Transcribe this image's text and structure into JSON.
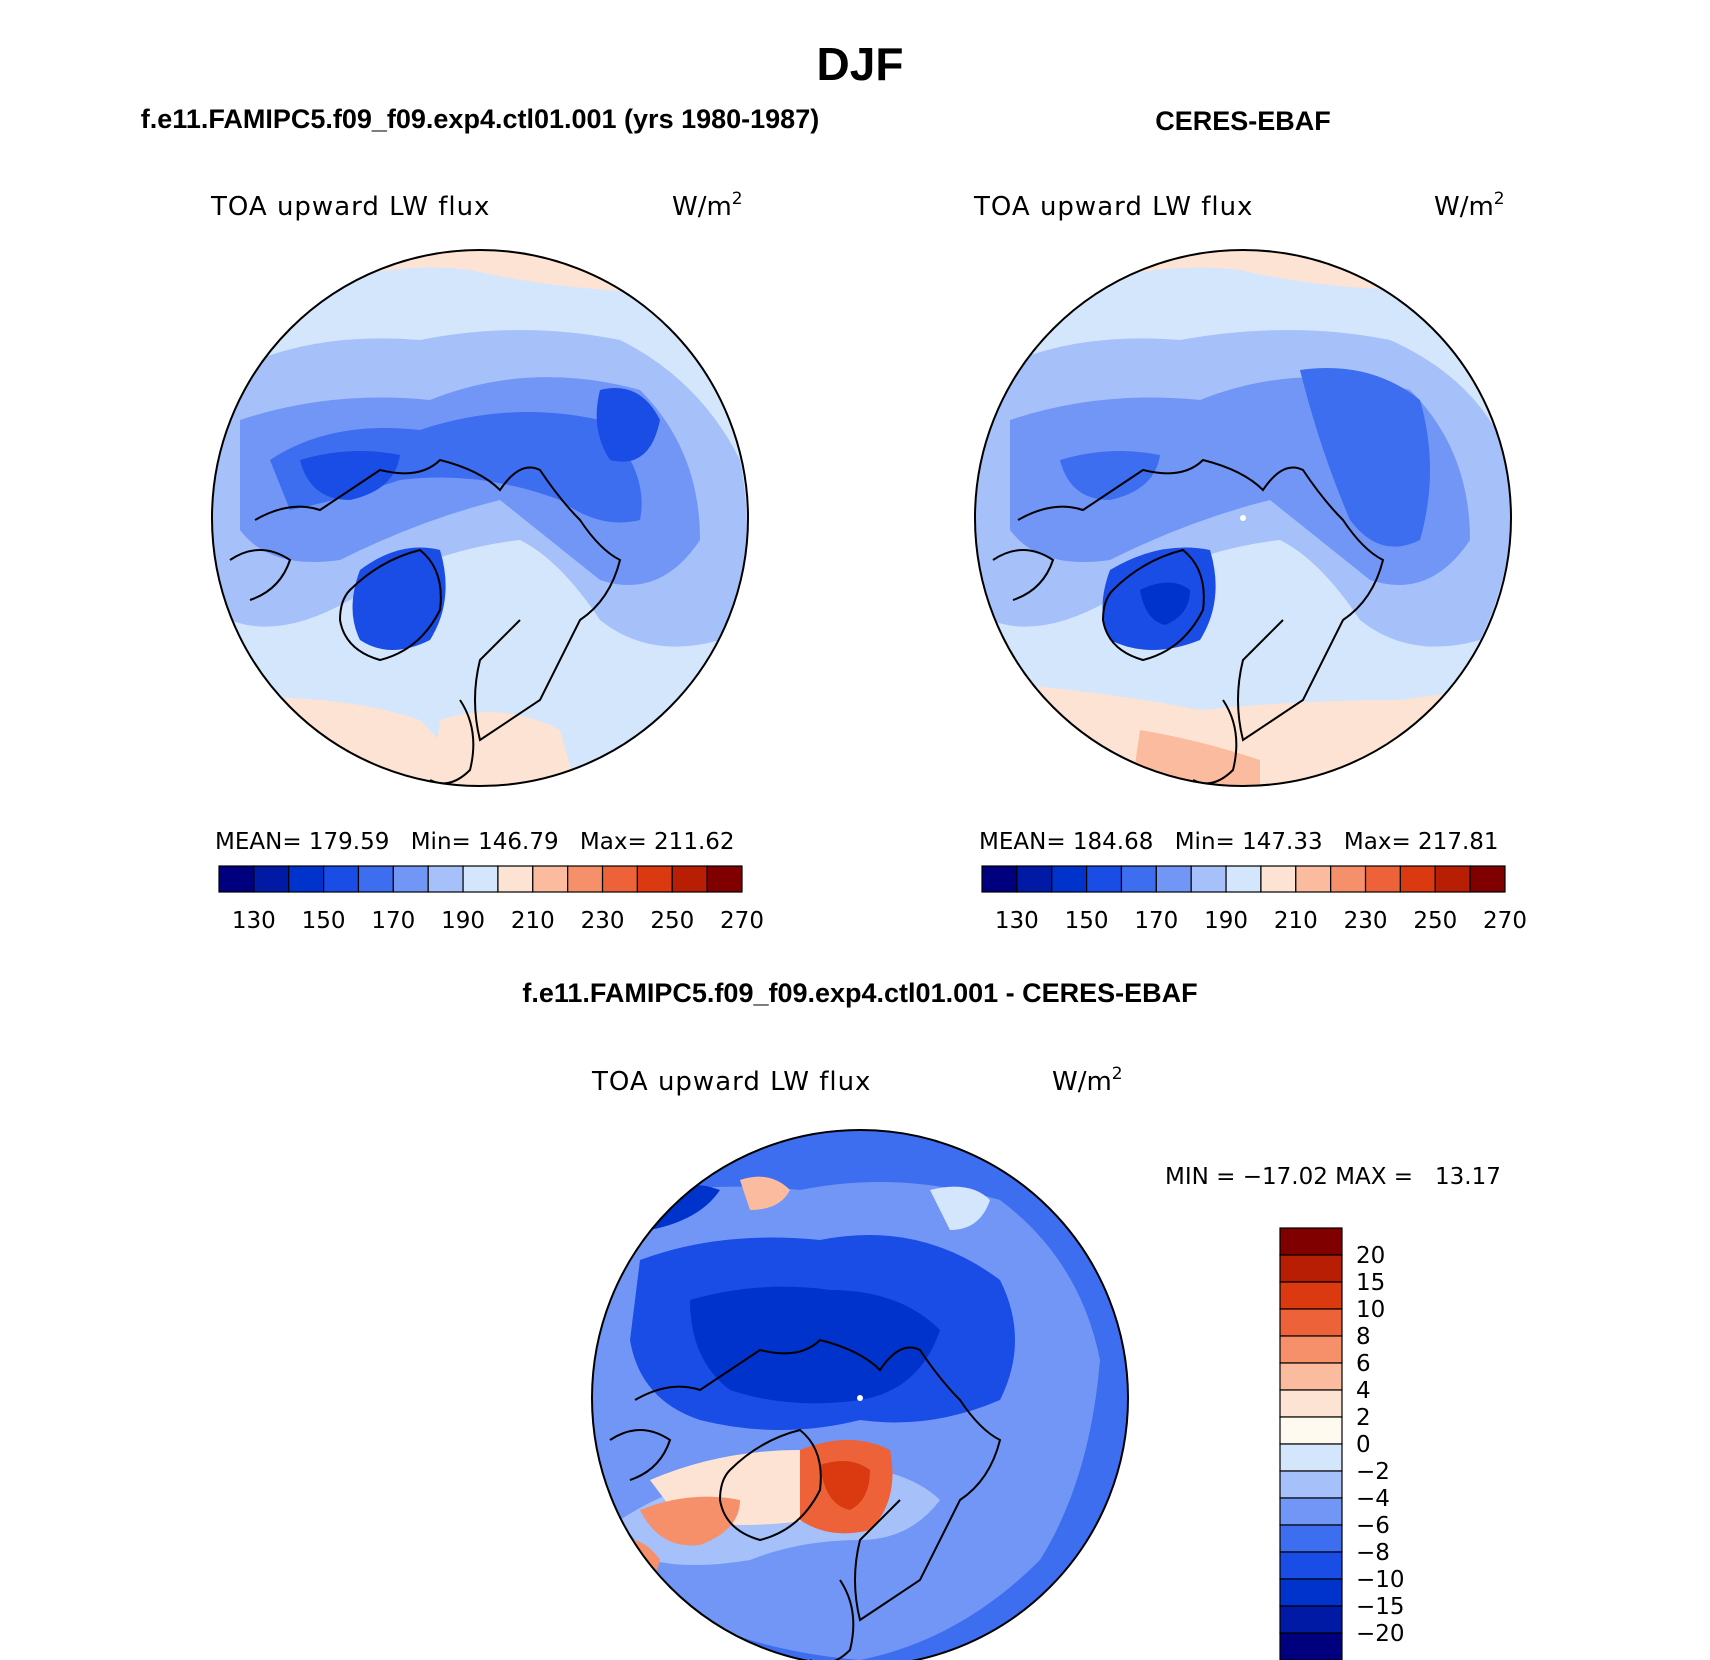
{
  "title": "DJF",
  "panels": [
    {
      "id": "model",
      "case_title": "f.e11.FAMIPC5.f09_f09.exp4.ctl01.001 (yrs 1980-1987)",
      "variable": "TOA upward LW flux",
      "units": "W/m",
      "units_exponent": "2",
      "stats": {
        "mean_label": "MEAN=",
        "mean": "179.59",
        "min_label": "Min=",
        "min": "146.79",
        "max_label": "Max=",
        "max": "211.62"
      }
    },
    {
      "id": "obs",
      "case_title": "CERES-EBAF",
      "variable": "TOA upward LW flux",
      "units": "W/m",
      "units_exponent": "2",
      "stats": {
        "mean_label": "MEAN=",
        "mean": "184.68",
        "min_label": "Min=",
        "min": "147.33",
        "max_label": "Max=",
        "max": "217.81"
      }
    },
    {
      "id": "diff",
      "case_title": "f.e11.FAMIPC5.f09_f09.exp4.ctl01.001 - CERES-EBAF",
      "variable": "TOA upward LW flux",
      "units": "W/m",
      "units_exponent": "2",
      "minmax_text": "MIN = −17.02 MAX =   13.17"
    }
  ],
  "chart_data": [
    {
      "type": "heatmap",
      "projection": "north polar stereographic",
      "title": "TOA upward LW flux",
      "units": "W/m^2",
      "mean": 179.59,
      "min": 146.79,
      "max": 211.62,
      "colorbar": {
        "orientation": "horizontal",
        "levels": [
          130,
          140,
          150,
          160,
          170,
          180,
          190,
          200,
          210,
          220,
          230,
          240,
          250,
          260,
          270
        ],
        "tick_labels": [
          "130",
          "150",
          "170",
          "190",
          "210",
          "230",
          "250",
          "270"
        ],
        "colors": [
          "#00007f",
          "#001aa6",
          "#0033cc",
          "#1a4ce6",
          "#3d6ef0",
          "#7196f5",
          "#a6c0fa",
          "#d4e6fc",
          "#fde3d3",
          "#fbbb9e",
          "#f6906a",
          "#ed6238",
          "#db3a10",
          "#b81e04",
          "#800000"
        ]
      }
    },
    {
      "type": "heatmap",
      "projection": "north polar stereographic",
      "title": "TOA upward LW flux",
      "units": "W/m^2",
      "mean": 184.68,
      "min": 147.33,
      "max": 217.81,
      "colorbar": {
        "orientation": "horizontal",
        "levels": [
          130,
          140,
          150,
          160,
          170,
          180,
          190,
          200,
          210,
          220,
          230,
          240,
          250,
          260,
          270
        ],
        "tick_labels": [
          "130",
          "150",
          "170",
          "190",
          "210",
          "230",
          "250",
          "270"
        ],
        "colors": [
          "#00007f",
          "#001aa6",
          "#0033cc",
          "#1a4ce6",
          "#3d6ef0",
          "#7196f5",
          "#a6c0fa",
          "#d4e6fc",
          "#fde3d3",
          "#fbbb9e",
          "#f6906a",
          "#ed6238",
          "#db3a10",
          "#b81e04",
          "#800000"
        ]
      }
    },
    {
      "type": "heatmap",
      "projection": "north polar stereographic",
      "title": "TOA upward LW flux",
      "units": "W/m^2",
      "min": -17.02,
      "max": 13.17,
      "colorbar": {
        "orientation": "vertical",
        "tick_labels": [
          "20",
          "15",
          "10",
          "8",
          "6",
          "4",
          "2",
          "0",
          "−2",
          "−4",
          "−6",
          "−8",
          "−10",
          "−15",
          "−20"
        ],
        "colors": [
          "#800000",
          "#b81e04",
          "#db3a10",
          "#ed6238",
          "#f6906a",
          "#fbbb9e",
          "#fde3d3",
          "#fffaf0",
          "#d4e6fc",
          "#a6c0fa",
          "#7196f5",
          "#3d6ef0",
          "#1a4ce6",
          "#0033cc",
          "#001aa6",
          "#00007f"
        ]
      }
    }
  ]
}
